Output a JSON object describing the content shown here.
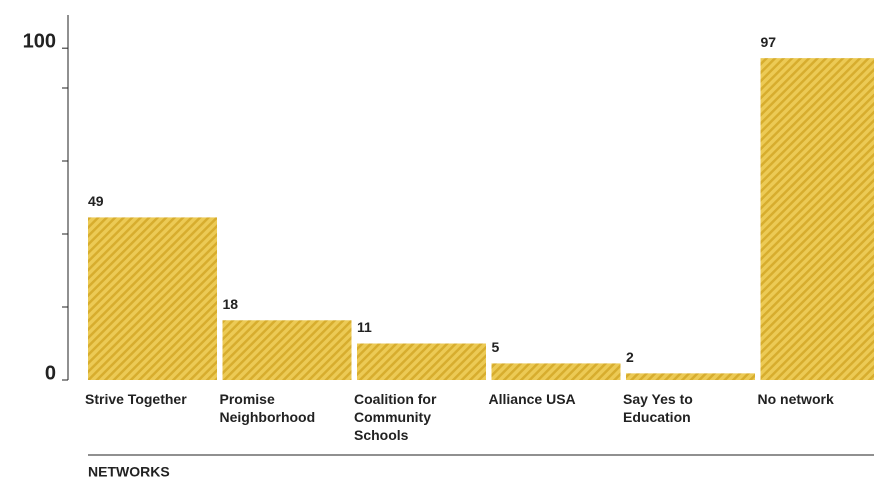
{
  "chart_data": {
    "type": "bar",
    "categories": [
      "Strive Together",
      "Promise Neighborhood",
      "Coalition for Community Schools",
      "Alliance USA",
      "Say Yes to Education",
      "No network"
    ],
    "values": [
      49,
      18,
      11,
      5,
      2,
      97
    ],
    "color": "#e9c54b",
    "xlabel": "NETWORKS",
    "ylim": [
      0,
      110
    ],
    "yticks": [
      0,
      100
    ],
    "yminor": [
      22,
      44,
      66,
      88
    ]
  }
}
